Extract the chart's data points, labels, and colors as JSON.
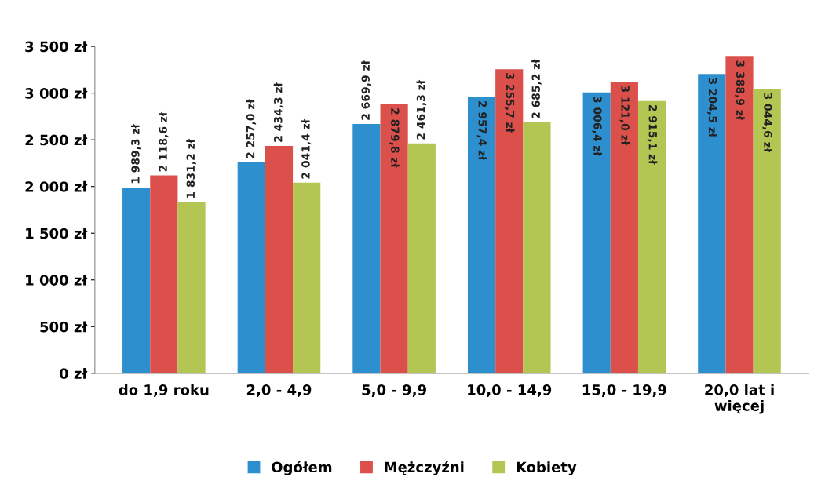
{
  "chart_data": {
    "type": "bar",
    "categories": [
      "do 1,9 roku",
      "2,0 - 4,9",
      "5,0 - 9,9",
      "10,0 - 14,9",
      "15,0 - 19,9",
      "20,0 lat i\nwięcej"
    ],
    "series": [
      {
        "name": "Ogółem",
        "color": "#2e8fce",
        "values": [
          1989.3,
          2257.0,
          2669.9,
          2957.4,
          3006.4,
          3204.5
        ],
        "value_labels": [
          "1 989,3 zł",
          "2 257,0 zł",
          "2 669,9 zł",
          "2 957,4 zł",
          "3 006,4 zł",
          "3 204,5 zł"
        ]
      },
      {
        "name": "Mężczyźni",
        "color": "#dc504c",
        "values": [
          2118.6,
          2434.3,
          2879.8,
          3255.7,
          3121.0,
          3388.9
        ],
        "value_labels": [
          "2 118,6 zł",
          "2 434,3 zł",
          "2 879,8 zł",
          "3 255,7 zł",
          "3 121,0 zł",
          "3 388,9 zł"
        ]
      },
      {
        "name": "Kobiety",
        "color": "#b3c552",
        "values": [
          1831.2,
          2041.4,
          2461.3,
          2685.2,
          2915.1,
          3044.6
        ],
        "value_labels": [
          "1 831,2 zł",
          "2 041,4 zł",
          "2 461,3 zł",
          "2 685,2 zł",
          "2 915,1 zł",
          "3 044,6 zł"
        ]
      }
    ],
    "ylim": [
      0,
      3500
    ],
    "yticks": [
      {
        "value": 0,
        "label": "0 zł"
      },
      {
        "value": 500,
        "label": "500 zł"
      },
      {
        "value": 1000,
        "label": "1 000 zł"
      },
      {
        "value": 1500,
        "label": "1 500 zł"
      },
      {
        "value": 2000,
        "label": "2 000 zł"
      },
      {
        "value": 2500,
        "label": "2 500 zł"
      },
      {
        "value": 3000,
        "label": "3 000 zł"
      },
      {
        "value": 3500,
        "label": "3 500 zł"
      }
    ],
    "legend": "bottom"
  }
}
